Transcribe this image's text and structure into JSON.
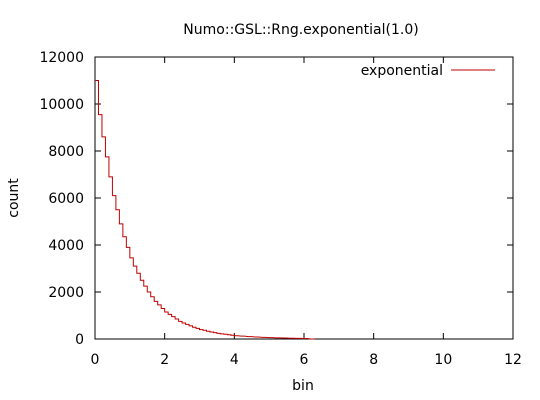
{
  "chart_data": {
    "type": "line",
    "title": "Numo::GSL::Rng.exponential(1.0)",
    "xlabel": "bin",
    "ylabel": "count",
    "xlim": [
      0,
      12
    ],
    "ylim": [
      0,
      12000
    ],
    "x_ticks": [
      "0",
      "2",
      "4",
      "6",
      "8",
      "10",
      "12"
    ],
    "y_ticks": [
      "0",
      "2000",
      "4000",
      "6000",
      "8000",
      "10000",
      "12000"
    ],
    "grid": false,
    "legend_position": "top-right",
    "bin_width": 0.1,
    "series": [
      {
        "name": "exponential",
        "color": "#c00000",
        "bins_start": [
          0.0,
          0.1,
          0.2,
          0.3,
          0.4,
          0.5,
          0.6,
          0.7,
          0.8,
          0.9,
          1.0,
          1.1,
          1.2,
          1.3,
          1.4,
          1.5,
          1.6,
          1.7,
          1.8,
          1.9,
          2.0,
          2.1,
          2.2,
          2.3,
          2.4,
          2.5,
          2.6,
          2.7,
          2.8,
          2.9,
          3.0,
          3.1,
          3.2,
          3.3,
          3.4,
          3.5,
          3.6,
          3.7,
          3.8,
          3.9,
          4.0,
          4.2,
          4.4,
          4.6,
          4.8,
          5.0,
          5.2,
          5.4,
          5.6,
          5.8,
          6.0,
          6.2
        ],
        "counts": [
          11000,
          9550,
          8600,
          7750,
          6900,
          6100,
          5500,
          4900,
          4350,
          3900,
          3450,
          3100,
          2800,
          2500,
          2250,
          2000,
          1800,
          1600,
          1450,
          1300,
          1150,
          1050,
          950,
          850,
          750,
          680,
          620,
          560,
          500,
          450,
          400,
          370,
          330,
          300,
          270,
          240,
          220,
          200,
          180,
          160,
          140,
          120,
          100,
          85,
          70,
          60,
          50,
          40,
          30,
          25,
          20,
          0
        ]
      }
    ]
  }
}
